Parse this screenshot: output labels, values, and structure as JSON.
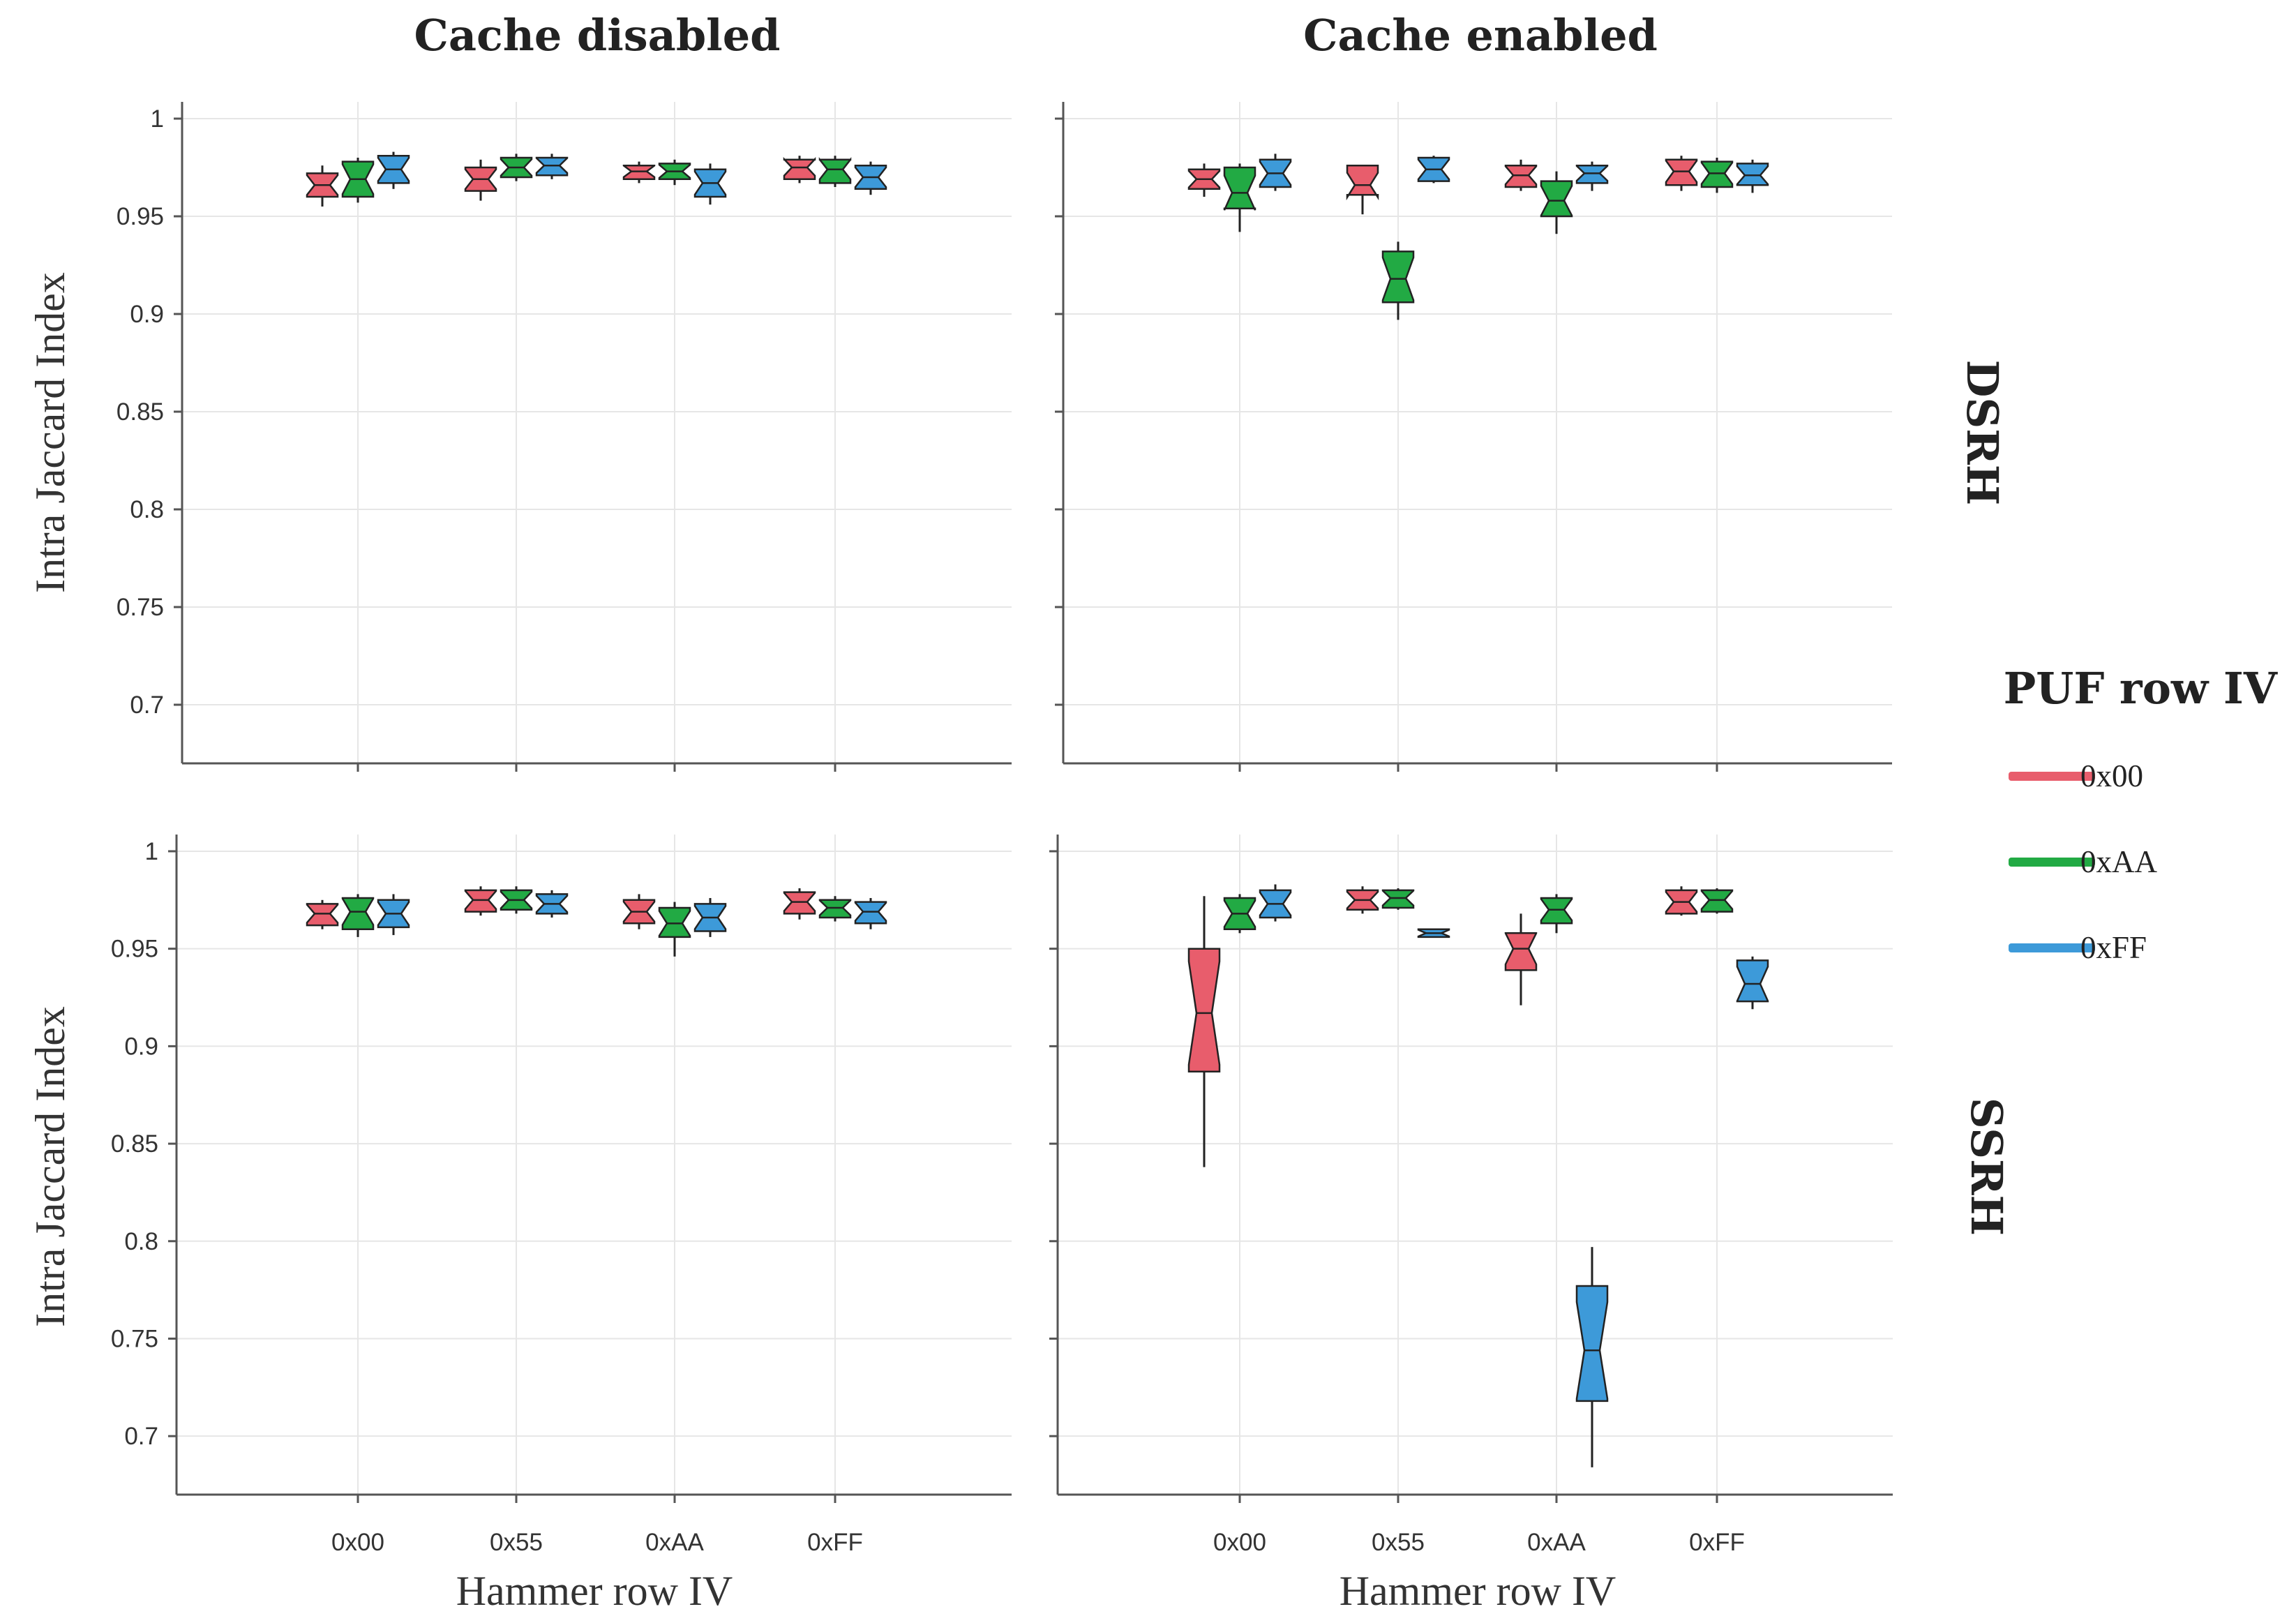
{
  "chart_data": {
    "type": "boxplot",
    "notched": true,
    "facet_columns": [
      "Cache disabled",
      "Cache enabled"
    ],
    "facet_rows": [
      "DSRH",
      "SSRH"
    ],
    "categories": [
      "0x00",
      "0x55",
      "0xAA",
      "0xFF"
    ],
    "xlabel": "Hammer row IV",
    "ylabel": "Intra Jaccard Index",
    "ylim": [
      0.67,
      1.005
    ],
    "yticks": [
      1,
      0.95,
      0.9,
      0.85,
      0.8,
      0.75,
      0.7
    ],
    "ytick_labels": [
      "1",
      "0.95",
      "0.9",
      "0.85",
      "0.8",
      "0.75",
      "0.7"
    ],
    "grid": true,
    "legend": {
      "title": "PUF row IV",
      "position": "right",
      "entries": [
        {
          "label": "0x00",
          "color": "#e85d6c"
        },
        {
          "label": "0xAA",
          "color": "#22aa44"
        },
        {
          "label": "0xFF",
          "color": "#3d9ad9"
        }
      ]
    },
    "panels": [
      {
        "facet_row": "DSRH",
        "facet_col": "Cache disabled",
        "boxes": [
          {
            "category": "0x00",
            "series": "0x00",
            "whislo": 0.955,
            "q1": 0.96,
            "median": 0.966,
            "q3": 0.972,
            "whishi": 0.976
          },
          {
            "category": "0x00",
            "series": "0xAA",
            "whislo": 0.957,
            "q1": 0.96,
            "median": 0.969,
            "q3": 0.978,
            "whishi": 0.98
          },
          {
            "category": "0x00",
            "series": "0xFF",
            "whislo": 0.964,
            "q1": 0.967,
            "median": 0.974,
            "q3": 0.981,
            "whishi": 0.983
          },
          {
            "category": "0x55",
            "series": "0x00",
            "whislo": 0.958,
            "q1": 0.963,
            "median": 0.969,
            "q3": 0.975,
            "whishi": 0.979
          },
          {
            "category": "0x55",
            "series": "0xAA",
            "whislo": 0.968,
            "q1": 0.97,
            "median": 0.975,
            "q3": 0.98,
            "whishi": 0.982
          },
          {
            "category": "0x55",
            "series": "0xFF",
            "whislo": 0.969,
            "q1": 0.971,
            "median": 0.976,
            "q3": 0.98,
            "whishi": 0.982
          },
          {
            "category": "0xAA",
            "series": "0x00",
            "whislo": 0.967,
            "q1": 0.969,
            "median": 0.973,
            "q3": 0.976,
            "whishi": 0.978
          },
          {
            "category": "0xAA",
            "series": "0xAA",
            "whislo": 0.966,
            "q1": 0.969,
            "median": 0.973,
            "q3": 0.977,
            "whishi": 0.979
          },
          {
            "category": "0xAA",
            "series": "0xFF",
            "whislo": 0.956,
            "q1": 0.96,
            "median": 0.967,
            "q3": 0.974,
            "whishi": 0.977
          },
          {
            "category": "0xFF",
            "series": "0x00",
            "whislo": 0.967,
            "q1": 0.969,
            "median": 0.975,
            "q3": 0.979,
            "whishi": 0.981
          },
          {
            "category": "0xFF",
            "series": "0xAA",
            "whislo": 0.965,
            "q1": 0.967,
            "median": 0.974,
            "q3": 0.979,
            "whishi": 0.981
          },
          {
            "category": "0xFF",
            "series": "0xFF",
            "whislo": 0.961,
            "q1": 0.964,
            "median": 0.97,
            "q3": 0.976,
            "whishi": 0.978
          }
        ]
      },
      {
        "facet_row": "DSRH",
        "facet_col": "Cache enabled",
        "boxes": [
          {
            "category": "0x00",
            "series": "0x00",
            "whislo": 0.96,
            "q1": 0.964,
            "median": 0.969,
            "q3": 0.974,
            "whishi": 0.977
          },
          {
            "category": "0x00",
            "series": "0xAA",
            "whislo": 0.942,
            "q1": 0.954,
            "median": 0.962,
            "q3": 0.975,
            "whishi": 0.977
          },
          {
            "category": "0x00",
            "series": "0xFF",
            "whislo": 0.963,
            "q1": 0.965,
            "median": 0.972,
            "q3": 0.979,
            "whishi": 0.982
          },
          {
            "category": "0x55",
            "series": "0x00",
            "whislo": 0.951,
            "q1": 0.961,
            "median": 0.966,
            "q3": 0.976,
            "whishi": 0.976
          },
          {
            "category": "0x55",
            "series": "0xAA",
            "whislo": 0.897,
            "q1": 0.906,
            "median": 0.918,
            "q3": 0.932,
            "whishi": 0.937
          },
          {
            "category": "0x55",
            "series": "0xFF",
            "whislo": 0.967,
            "q1": 0.968,
            "median": 0.974,
            "q3": 0.98,
            "whishi": 0.981
          },
          {
            "category": "0xAA",
            "series": "0x00",
            "whislo": 0.963,
            "q1": 0.965,
            "median": 0.971,
            "q3": 0.976,
            "whishi": 0.979
          },
          {
            "category": "0xAA",
            "series": "0xAA",
            "whislo": 0.941,
            "q1": 0.95,
            "median": 0.958,
            "q3": 0.968,
            "whishi": 0.973
          },
          {
            "category": "0xAA",
            "series": "0xFF",
            "whislo": 0.963,
            "q1": 0.967,
            "median": 0.972,
            "q3": 0.976,
            "whishi": 0.978
          },
          {
            "category": "0xFF",
            "series": "0x00",
            "whislo": 0.963,
            "q1": 0.966,
            "median": 0.973,
            "q3": 0.979,
            "whishi": 0.981
          },
          {
            "category": "0xFF",
            "series": "0xAA",
            "whislo": 0.962,
            "q1": 0.965,
            "median": 0.972,
            "q3": 0.978,
            "whishi": 0.98
          },
          {
            "category": "0xFF",
            "series": "0xFF",
            "whislo": 0.962,
            "q1": 0.966,
            "median": 0.971,
            "q3": 0.977,
            "whishi": 0.979
          }
        ]
      },
      {
        "facet_row": "SSRH",
        "facet_col": "Cache disabled",
        "boxes": [
          {
            "category": "0x00",
            "series": "0x00",
            "whislo": 0.96,
            "q1": 0.962,
            "median": 0.968,
            "q3": 0.973,
            "whishi": 0.975
          },
          {
            "category": "0x00",
            "series": "0xAA",
            "whislo": 0.956,
            "q1": 0.96,
            "median": 0.969,
            "q3": 0.976,
            "whishi": 0.978
          },
          {
            "category": "0x00",
            "series": "0xFF",
            "whislo": 0.957,
            "q1": 0.961,
            "median": 0.968,
            "q3": 0.975,
            "whishi": 0.978
          },
          {
            "category": "0x55",
            "series": "0x00",
            "whislo": 0.967,
            "q1": 0.969,
            "median": 0.975,
            "q3": 0.98,
            "whishi": 0.982
          },
          {
            "category": "0x55",
            "series": "0xAA",
            "whislo": 0.968,
            "q1": 0.97,
            "median": 0.975,
            "q3": 0.98,
            "whishi": 0.982
          },
          {
            "category": "0x55",
            "series": "0xFF",
            "whislo": 0.966,
            "q1": 0.968,
            "median": 0.973,
            "q3": 0.978,
            "whishi": 0.98
          },
          {
            "category": "0xAA",
            "series": "0x00",
            "whislo": 0.96,
            "q1": 0.963,
            "median": 0.969,
            "q3": 0.975,
            "whishi": 0.978
          },
          {
            "category": "0xAA",
            "series": "0xAA",
            "whislo": 0.946,
            "q1": 0.956,
            "median": 0.963,
            "q3": 0.971,
            "whishi": 0.974
          },
          {
            "category": "0xAA",
            "series": "0xFF",
            "whislo": 0.956,
            "q1": 0.959,
            "median": 0.966,
            "q3": 0.973,
            "whishi": 0.976
          },
          {
            "category": "0xFF",
            "series": "0x00",
            "whislo": 0.965,
            "q1": 0.968,
            "median": 0.974,
            "q3": 0.979,
            "whishi": 0.981
          },
          {
            "category": "0xFF",
            "series": "0xAA",
            "whislo": 0.964,
            "q1": 0.966,
            "median": 0.971,
            "q3": 0.975,
            "whishi": 0.977
          },
          {
            "category": "0xFF",
            "series": "0xFF",
            "whislo": 0.96,
            "q1": 0.963,
            "median": 0.969,
            "q3": 0.974,
            "whishi": 0.976
          }
        ]
      },
      {
        "facet_row": "SSRH",
        "facet_col": "Cache enabled",
        "boxes": [
          {
            "category": "0x00",
            "series": "0x00",
            "whislo": 0.838,
            "q1": 0.887,
            "median": 0.917,
            "q3": 0.95,
            "whishi": 0.977
          },
          {
            "category": "0x00",
            "series": "0xAA",
            "whislo": 0.958,
            "q1": 0.96,
            "median": 0.968,
            "q3": 0.976,
            "whishi": 0.978
          },
          {
            "category": "0x00",
            "series": "0xFF",
            "whislo": 0.964,
            "q1": 0.966,
            "median": 0.973,
            "q3": 0.98,
            "whishi": 0.983
          },
          {
            "category": "0x55",
            "series": "0x00",
            "whislo": 0.968,
            "q1": 0.97,
            "median": 0.975,
            "q3": 0.98,
            "whishi": 0.982
          },
          {
            "category": "0x55",
            "series": "0xAA",
            "whislo": 0.97,
            "q1": 0.971,
            "median": 0.976,
            "q3": 0.98,
            "whishi": 0.981
          },
          {
            "category": "0x55",
            "series": "0xFF",
            "whislo": 0.956,
            "q1": 0.956,
            "median": 0.958,
            "q3": 0.96,
            "whishi": 0.96
          },
          {
            "category": "0xAA",
            "series": "0x00",
            "whislo": 0.921,
            "q1": 0.939,
            "median": 0.95,
            "q3": 0.958,
            "whishi": 0.968
          },
          {
            "category": "0xAA",
            "series": "0xAA",
            "whislo": 0.958,
            "q1": 0.963,
            "median": 0.97,
            "q3": 0.976,
            "whishi": 0.978
          },
          {
            "category": "0xAA",
            "series": "0xFF",
            "whislo": 0.684,
            "q1": 0.718,
            "median": 0.744,
            "q3": 0.777,
            "whishi": 0.797
          },
          {
            "category": "0xFF",
            "series": "0x00",
            "whislo": 0.967,
            "q1": 0.968,
            "median": 0.974,
            "q3": 0.98,
            "whishi": 0.982
          },
          {
            "category": "0xFF",
            "series": "0xAA",
            "whislo": 0.968,
            "q1": 0.969,
            "median": 0.975,
            "q3": 0.98,
            "whishi": 0.981
          },
          {
            "category": "0xFF",
            "series": "0xFF",
            "whislo": 0.919,
            "q1": 0.923,
            "median": 0.932,
            "q3": 0.944,
            "whishi": 0.946
          }
        ]
      }
    ]
  }
}
